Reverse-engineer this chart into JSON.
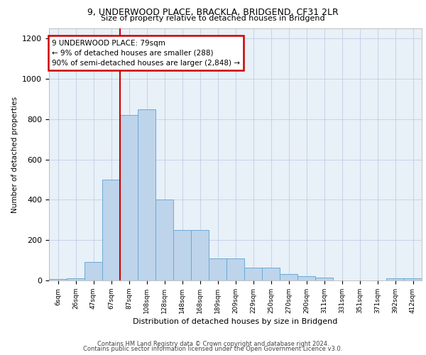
{
  "title_line1": "9, UNDERWOOD PLACE, BRACKLA, BRIDGEND, CF31 2LR",
  "title_line2": "Size of property relative to detached houses in Bridgend",
  "xlabel": "Distribution of detached houses by size in Bridgend",
  "ylabel": "Number of detached properties",
  "bin_labels": [
    "6sqm",
    "26sqm",
    "47sqm",
    "67sqm",
    "87sqm",
    "108sqm",
    "128sqm",
    "148sqm",
    "168sqm",
    "189sqm",
    "209sqm",
    "229sqm",
    "250sqm",
    "270sqm",
    "290sqm",
    "311sqm",
    "331sqm",
    "351sqm",
    "371sqm",
    "392sqm",
    "412sqm"
  ],
  "bar_values": [
    8,
    10,
    90,
    500,
    820,
    850,
    400,
    250,
    250,
    110,
    110,
    65,
    65,
    30,
    20,
    15,
    0,
    0,
    0,
    10,
    10
  ],
  "bar_color": "#bdd4eb",
  "bar_edge_color": "#6aaad4",
  "vline_x": 4,
  "vline_color": "#cc0000",
  "annotation_text": "9 UNDERWOOD PLACE: 79sqm\n← 9% of detached houses are smaller (288)\n90% of semi-detached houses are larger (2,848) →",
  "annotation_box_color": "#ffffff",
  "annotation_box_edge": "#cc0000",
  "ylim": [
    0,
    1250
  ],
  "yticks": [
    0,
    200,
    400,
    600,
    800,
    1000,
    1200
  ],
  "bg_color": "#e8f0f8",
  "footer_line1": "Contains HM Land Registry data © Crown copyright and database right 2024.",
  "footer_line2": "Contains public sector information licensed under the Open Government Licence v3.0."
}
